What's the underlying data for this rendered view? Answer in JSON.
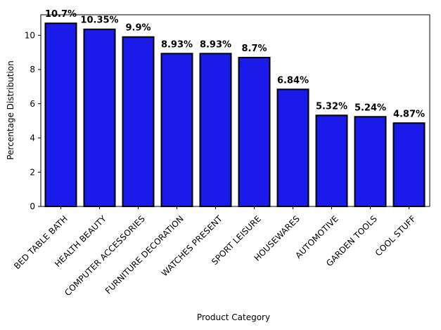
{
  "chart_data": {
    "type": "bar",
    "categories": [
      "BED TABLE BATH",
      "HEALTH BEAUTY",
      "COMPUTER ACCESSORIES",
      "FURNITURE DECORATION",
      "WATCHES PRESENT",
      "SPORT LEISURE",
      "HOUSEWARES",
      "AUTOMOTIVE",
      "GARDEN TOOLS",
      "COOL STUFF"
    ],
    "values": [
      10.7,
      10.35,
      9.9,
      8.93,
      8.93,
      8.7,
      6.84,
      5.32,
      5.24,
      4.87
    ],
    "data_labels": [
      "10.7%",
      "10.35%",
      "9.9%",
      "8.93%",
      "8.93%",
      "8.7%",
      "6.84%",
      "5.32%",
      "5.24%",
      "4.87%"
    ],
    "xlabel": "Product Category",
    "ylabel": "Percentage Distribution",
    "ylim": [
      0,
      11.2
    ],
    "yticks": [
      0,
      2,
      4,
      6,
      8,
      10
    ],
    "bar_color": "#1a1aeb",
    "bar_edge_color": "#000000",
    "grid": false,
    "legend": false
  }
}
